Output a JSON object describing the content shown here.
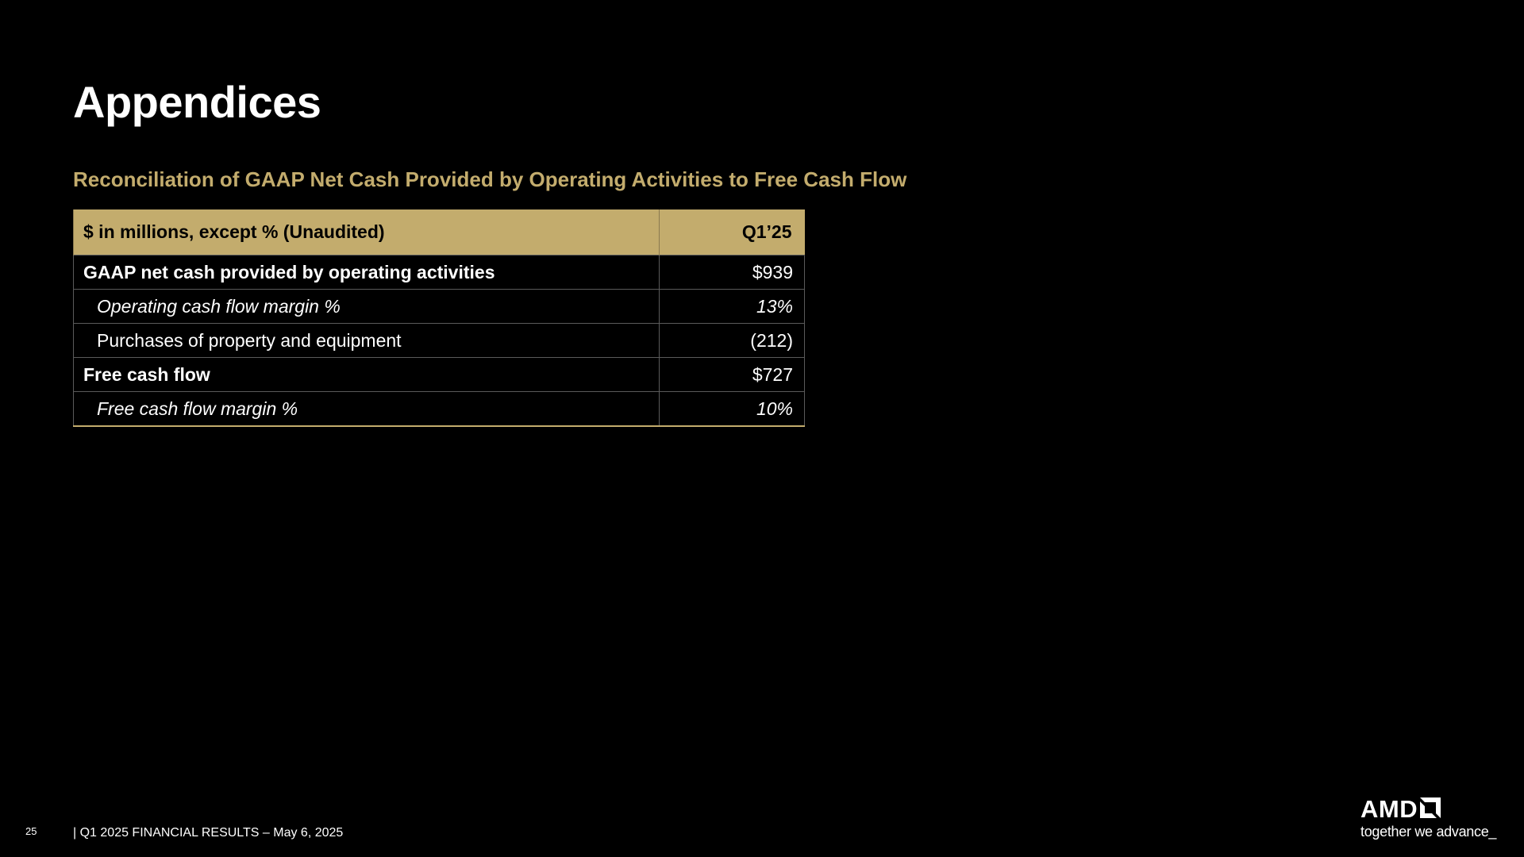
{
  "slide": {
    "title": "Appendices",
    "section_title": "Reconciliation of GAAP Net Cash Provided by Operating Activities to Free Cash Flow"
  },
  "table": {
    "header": {
      "label": "$ in millions, except % (Unaudited)",
      "period": "Q1’25"
    },
    "rows": [
      {
        "label": "GAAP net cash provided by operating activities",
        "value": "$939"
      },
      {
        "label": "Operating cash flow margin %",
        "value": "13%"
      },
      {
        "label": "Purchases of property and equipment",
        "value": "(212)"
      },
      {
        "label": "Free cash flow",
        "value": "$727"
      },
      {
        "label": "Free cash flow margin %",
        "value": "10%"
      }
    ]
  },
  "footer": {
    "page_number": "25",
    "text": "|   Q1 2025 FINANCIAL RESULTS – May 6, 2025"
  },
  "logo": {
    "wordmark": "AMD",
    "tagline": "together we advance_",
    "icon": "amd-arrow-icon"
  },
  "colors": {
    "background": "#000000",
    "accent_gold": "#c3ac6d",
    "text": "#ffffff"
  }
}
